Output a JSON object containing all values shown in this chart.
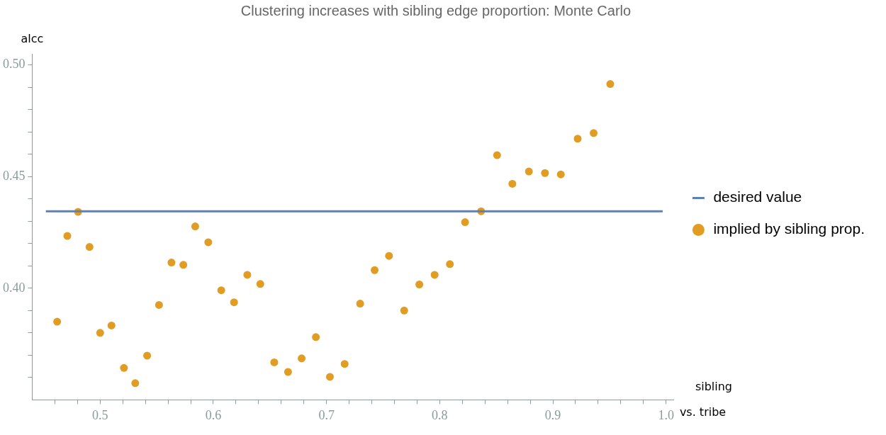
{
  "chart_data": {
    "type": "scatter",
    "title": "Clustering increases with sibling edge proportion: Monte Carlo",
    "xlabel": "sibling vs. tribe",
    "ylabel": "alcc",
    "xlim": [
      0.44,
      1.007
    ],
    "ylim": [
      0.35,
      0.505
    ],
    "xticks": [
      {
        "value": 0.46,
        "label": null
      },
      {
        "value": 0.48,
        "label": null
      },
      {
        "value": 0.5,
        "label": "0.5"
      },
      {
        "value": 0.52,
        "label": null
      },
      {
        "value": 0.54,
        "label": null
      },
      {
        "value": 0.56,
        "label": null
      },
      {
        "value": 0.58,
        "label": null
      },
      {
        "value": 0.6,
        "label": "0.6"
      },
      {
        "value": 0.62,
        "label": null
      },
      {
        "value": 0.64,
        "label": null
      },
      {
        "value": 0.66,
        "label": null
      },
      {
        "value": 0.68,
        "label": null
      },
      {
        "value": 0.7,
        "label": "0.7"
      },
      {
        "value": 0.72,
        "label": null
      },
      {
        "value": 0.74,
        "label": null
      },
      {
        "value": 0.76,
        "label": null
      },
      {
        "value": 0.78,
        "label": null
      },
      {
        "value": 0.8,
        "label": "0.8"
      },
      {
        "value": 0.82,
        "label": null
      },
      {
        "value": 0.84,
        "label": null
      },
      {
        "value": 0.86,
        "label": null
      },
      {
        "value": 0.88,
        "label": null
      },
      {
        "value": 0.9,
        "label": "0.9"
      },
      {
        "value": 0.92,
        "label": null
      },
      {
        "value": 0.94,
        "label": null
      },
      {
        "value": 0.96,
        "label": null
      },
      {
        "value": 0.98,
        "label": null
      },
      {
        "value": 1.0,
        "label": "1.0"
      }
    ],
    "yticks": [
      {
        "value": 0.36,
        "label": null
      },
      {
        "value": 0.37,
        "label": null
      },
      {
        "value": 0.38,
        "label": null
      },
      {
        "value": 0.39,
        "label": null
      },
      {
        "value": 0.4,
        "label": "0.40"
      },
      {
        "value": 0.41,
        "label": null
      },
      {
        "value": 0.42,
        "label": null
      },
      {
        "value": 0.43,
        "label": null
      },
      {
        "value": 0.44,
        "label": null
      },
      {
        "value": 0.45,
        "label": "0.45"
      },
      {
        "value": 0.46,
        "label": null
      },
      {
        "value": 0.47,
        "label": null
      },
      {
        "value": 0.48,
        "label": null
      },
      {
        "value": 0.49,
        "label": null
      },
      {
        "value": 0.5,
        "label": "0.50"
      }
    ],
    "legend": "right",
    "marker": "circle",
    "series": [
      {
        "name": "desired value",
        "type": "line",
        "color": "#5e81b5",
        "x": [
          0.452,
          0.997
        ],
        "values": [
          0.4345,
          0.4345
        ],
        "marker": "none",
        "line_style": "solid"
      },
      {
        "name": "implied by sibling prop.",
        "color": "#e19c24",
        "x": [
          0.462,
          0.471,
          0.4805,
          0.4906,
          0.5,
          0.51,
          0.521,
          0.531,
          0.5415,
          0.552,
          0.563,
          0.5735,
          0.584,
          0.5955,
          0.607,
          0.6183,
          0.63,
          0.6415,
          0.6538,
          0.666,
          0.678,
          0.6906,
          0.703,
          0.716,
          0.7297,
          0.7425,
          0.7552,
          0.7686,
          0.782,
          0.7955,
          0.809,
          0.8224,
          0.8366,
          0.8507,
          0.8642,
          0.8788,
          0.893,
          0.907,
          0.9219,
          0.936,
          0.9507
        ],
        "values": [
          0.385,
          0.4234,
          0.4342,
          0.4185,
          0.38,
          0.3833,
          0.3643,
          0.3575,
          0.3698,
          0.3925,
          0.4115,
          0.4105,
          0.4277,
          0.4206,
          0.3991,
          0.3937,
          0.406,
          0.4019,
          0.3668,
          0.3625,
          0.3686,
          0.3781,
          0.3603,
          0.3661,
          0.3931,
          0.4081,
          0.4145,
          0.39,
          0.4017,
          0.406,
          0.4108,
          0.4296,
          0.4345,
          0.4596,
          0.4468,
          0.4523,
          0.4516,
          0.451,
          0.467,
          0.4695,
          0.4915
        ]
      }
    ]
  }
}
